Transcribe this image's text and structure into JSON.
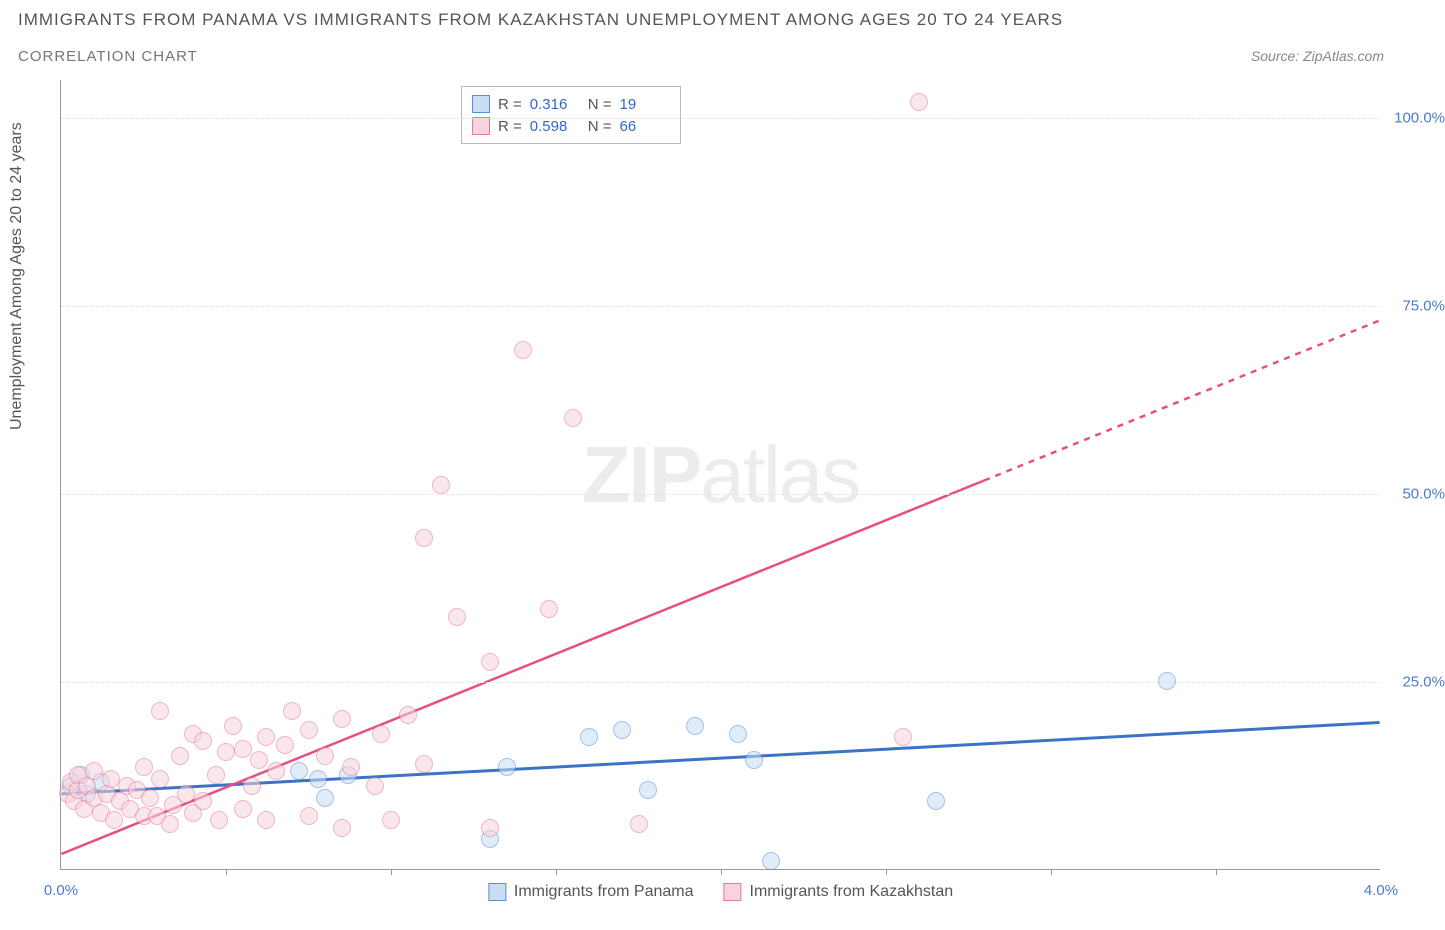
{
  "title": "IMMIGRANTS FROM PANAMA VS IMMIGRANTS FROM KAZAKHSTAN UNEMPLOYMENT AMONG AGES 20 TO 24 YEARS",
  "subtitle": "CORRELATION CHART",
  "source": "Source: ZipAtlas.com",
  "watermark_bold": "ZIP",
  "watermark_light": "atlas",
  "y_axis_label": "Unemployment Among Ages 20 to 24 years",
  "chart": {
    "type": "scatter",
    "x_min": 0.0,
    "x_max": 4.0,
    "y_min": 0.0,
    "y_max": 105.0,
    "x_ticks": [
      0.0,
      4.0
    ],
    "x_tick_labels": [
      "0.0%",
      "4.0%"
    ],
    "x_minor_ticks": [
      0.5,
      1.0,
      1.5,
      2.0,
      2.5,
      3.0,
      3.5
    ],
    "y_ticks": [
      25.0,
      50.0,
      75.0,
      100.0
    ],
    "y_tick_labels": [
      "25.0%",
      "50.0%",
      "75.0%",
      "100.0%"
    ],
    "background_color": "#ffffff",
    "grid_color": "#e5e5e5",
    "axis_color": "#999999",
    "marker_radius": 9,
    "marker_opacity": 0.55,
    "marker_border_opacity": 0.9,
    "series": [
      {
        "name": "Immigrants from Panama",
        "color_fill": "#c9ddf5",
        "color_border": "#5a8fd6",
        "r_value": "0.316",
        "n_value": "19",
        "trend": {
          "x1": 0.0,
          "y1": 10.0,
          "x2": 4.0,
          "y2": 19.5,
          "color": "#3d73c6",
          "width": 3,
          "dash_after_x": 4.0
        },
        "points": [
          [
            0.03,
            11.0
          ],
          [
            0.06,
            12.5
          ],
          [
            0.08,
            10.0
          ],
          [
            0.12,
            11.5
          ],
          [
            0.72,
            13.0
          ],
          [
            0.78,
            12.0
          ],
          [
            0.8,
            9.5
          ],
          [
            0.87,
            12.5
          ],
          [
            1.3,
            4.0
          ],
          [
            1.35,
            13.5
          ],
          [
            1.6,
            17.5
          ],
          [
            1.7,
            18.5
          ],
          [
            1.78,
            10.5
          ],
          [
            1.92,
            19.0
          ],
          [
            2.05,
            18.0
          ],
          [
            2.1,
            14.5
          ],
          [
            2.15,
            1.0
          ],
          [
            2.65,
            9.0
          ],
          [
            3.35,
            25.0
          ]
        ]
      },
      {
        "name": "Immigrants from Kazakhstan",
        "color_fill": "#f7d4dd",
        "color_border": "#e67a99",
        "r_value": "0.598",
        "n_value": "66",
        "trend": {
          "x1": 0.0,
          "y1": 2.0,
          "x2": 4.0,
          "y2": 73.0,
          "color": "#e84f7d",
          "width": 2.5,
          "dash_after_x": 2.8
        },
        "points": [
          [
            0.02,
            10.0
          ],
          [
            0.03,
            11.5
          ],
          [
            0.04,
            9.0
          ],
          [
            0.05,
            10.5
          ],
          [
            0.05,
            12.5
          ],
          [
            0.07,
            8.0
          ],
          [
            0.08,
            11.0
          ],
          [
            0.1,
            9.5
          ],
          [
            0.1,
            13.0
          ],
          [
            0.12,
            7.5
          ],
          [
            0.14,
            10.0
          ],
          [
            0.15,
            12.0
          ],
          [
            0.16,
            6.5
          ],
          [
            0.18,
            9.0
          ],
          [
            0.2,
            11.0
          ],
          [
            0.21,
            8.0
          ],
          [
            0.23,
            10.5
          ],
          [
            0.25,
            7.0
          ],
          [
            0.25,
            13.5
          ],
          [
            0.27,
            9.5
          ],
          [
            0.29,
            7.0
          ],
          [
            0.3,
            12.0
          ],
          [
            0.3,
            21.0
          ],
          [
            0.33,
            6.0
          ],
          [
            0.34,
            8.5
          ],
          [
            0.36,
            15.0
          ],
          [
            0.38,
            10.0
          ],
          [
            0.4,
            7.5
          ],
          [
            0.4,
            18.0
          ],
          [
            0.43,
            9.0
          ],
          [
            0.43,
            17.0
          ],
          [
            0.47,
            12.5
          ],
          [
            0.48,
            6.5
          ],
          [
            0.5,
            15.5
          ],
          [
            0.52,
            19.0
          ],
          [
            0.55,
            8.0
          ],
          [
            0.55,
            16.0
          ],
          [
            0.58,
            11.0
          ],
          [
            0.6,
            14.5
          ],
          [
            0.62,
            17.5
          ],
          [
            0.62,
            6.5
          ],
          [
            0.65,
            13.0
          ],
          [
            0.68,
            16.5
          ],
          [
            0.7,
            21.0
          ],
          [
            0.75,
            7.0
          ],
          [
            0.75,
            18.5
          ],
          [
            0.8,
            15.0
          ],
          [
            0.85,
            5.5
          ],
          [
            0.85,
            20.0
          ],
          [
            0.88,
            13.5
          ],
          [
            0.95,
            11.0
          ],
          [
            0.97,
            18.0
          ],
          [
            1.0,
            6.5
          ],
          [
            1.05,
            20.5
          ],
          [
            1.1,
            14.0
          ],
          [
            1.1,
            44.0
          ],
          [
            1.15,
            51.0
          ],
          [
            1.2,
            33.5
          ],
          [
            1.3,
            5.5
          ],
          [
            1.3,
            27.5
          ],
          [
            1.4,
            69.0
          ],
          [
            1.48,
            34.5
          ],
          [
            1.55,
            60.0
          ],
          [
            1.75,
            6.0
          ],
          [
            2.55,
            17.5
          ],
          [
            2.6,
            102.0
          ]
        ]
      }
    ]
  },
  "stats_box_labels": {
    "r": "R =",
    "n": "N ="
  },
  "bottom_legend": [
    {
      "label": "Immigrants from Panama",
      "fill": "#c9ddf5",
      "border": "#5a8fd6"
    },
    {
      "label": "Immigrants from Kazakhstan",
      "fill": "#f7d4dd",
      "border": "#e67a99"
    }
  ]
}
